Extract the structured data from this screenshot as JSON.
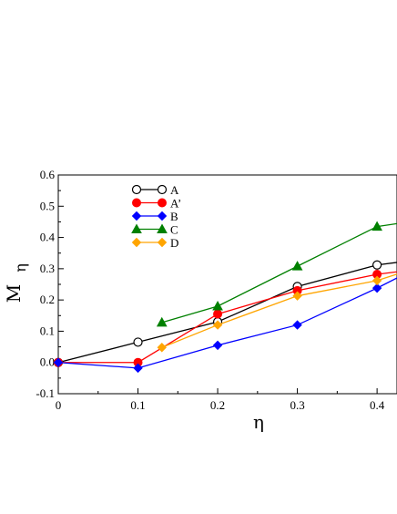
{
  "chart_data": {
    "type": "line",
    "xlabel": "η",
    "ylabel_main": "M",
    "ylabel_sub": "η",
    "xlim": [
      0,
      0.425
    ],
    "ylim": [
      -0.1,
      0.6
    ],
    "xticks": [
      "0",
      "0.1",
      "0.2",
      "0.3",
      "0.4"
    ],
    "xtick_values": [
      0,
      0.1,
      0.2,
      0.3,
      0.4
    ],
    "yticks": [
      "-0.1",
      "0.0",
      "0.1",
      "0.2",
      "0.3",
      "0.4",
      "0.5",
      "0.6"
    ],
    "ytick_values": [
      -0.1,
      0.0,
      0.1,
      0.2,
      0.3,
      0.4,
      0.5,
      0.6
    ],
    "legend_position": "top-left",
    "series": [
      {
        "name": "A",
        "color": "#000000",
        "marker": "open-circle",
        "x": [
          0,
          0.1,
          0.2,
          0.3,
          0.4,
          0.44
        ],
        "y": [
          0.0,
          0.065,
          0.13,
          0.243,
          0.312,
          0.325
        ]
      },
      {
        "name": "A’",
        "color": "#ff0000",
        "marker": "filled-circle",
        "x": [
          0,
          0.1,
          0.2,
          0.3,
          0.4,
          0.44
        ],
        "y": [
          0.0,
          0.0,
          0.155,
          0.23,
          0.282,
          0.295
        ]
      },
      {
        "name": "B",
        "color": "#0000ff",
        "marker": "diamond",
        "x": [
          0,
          0.1,
          0.2,
          0.3,
          0.4,
          0.44
        ],
        "y": [
          0.0,
          -0.018,
          0.055,
          0.12,
          0.238,
          0.29
        ]
      },
      {
        "name": "C",
        "color": "#008000",
        "marker": "triangle",
        "x": [
          0.13,
          0.2,
          0.3,
          0.4,
          0.44
        ],
        "y": [
          0.128,
          0.18,
          0.308,
          0.435,
          0.45
        ]
      },
      {
        "name": "D",
        "color": "#ffa500",
        "marker": "diamond",
        "x": [
          0.13,
          0.2,
          0.3,
          0.4,
          0.44
        ],
        "y": [
          0.048,
          0.12,
          0.213,
          0.262,
          0.295
        ]
      }
    ]
  }
}
